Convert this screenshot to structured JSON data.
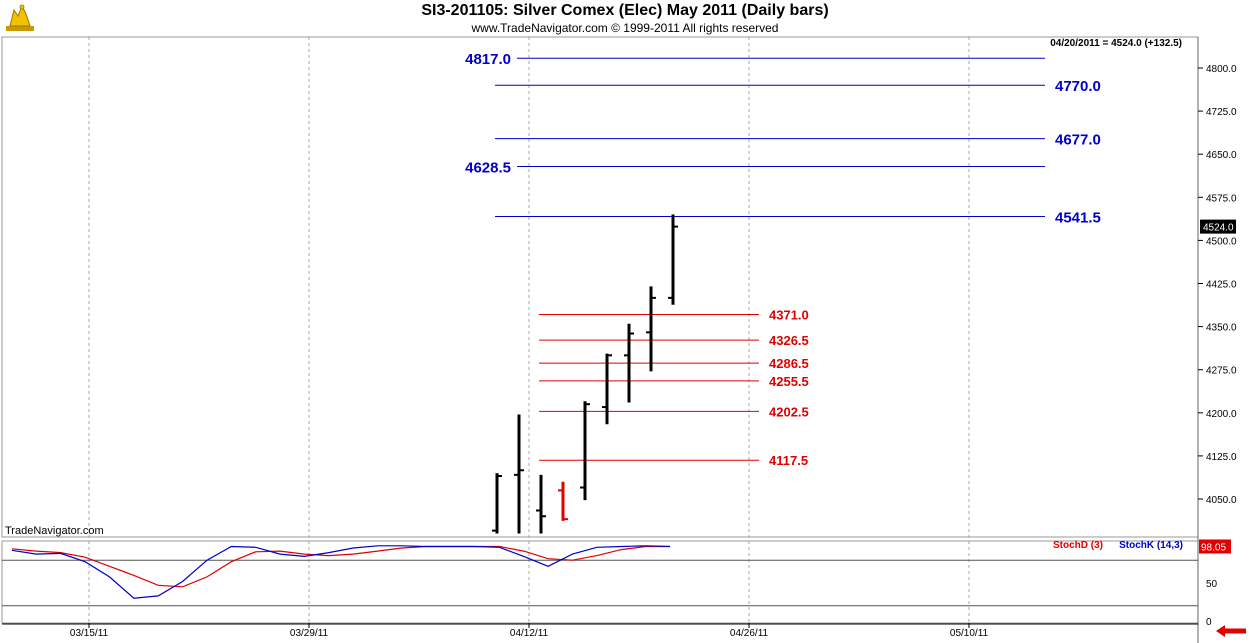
{
  "header": {
    "title": "SI3-201105:  Silver Comex (Elec) May 2011  (Daily bars)",
    "copyright": "www.TradeNavigator.com © 1999-2011 All rights reserved",
    "quote": "04/20/2011 = 4524.0 (+132.5)",
    "watermark": "TradeNavigator.com"
  },
  "colors": {
    "bars": "#000000",
    "down_bar": "#e00000",
    "resistance": "#0000c8",
    "support": "#e00000",
    "stoch_d": "#e00000",
    "stoch_k": "#0000c8",
    "grid": "#aaaaaa"
  },
  "chart_data": [
    {
      "type": "bar",
      "subtype": "ohlc",
      "title": "",
      "x_tick_labels": [
        "03/15/11",
        "03/29/11",
        "04/12/11",
        "04/26/11",
        "05/10/11"
      ],
      "ylim": [
        4000,
        4830
      ],
      "y_ticks": [
        4050.0,
        4125.0,
        4200.0,
        4275.0,
        4350.0,
        4425.0,
        4500.0,
        4575.0,
        4650.0,
        4725.0,
        4800.0
      ],
      "last_price_label": "4524.0",
      "bars": [
        {
          "i": 0,
          "open": 3995,
          "high": 4095,
          "low": 3990,
          "close": 4090,
          "color": "black"
        },
        {
          "i": 1,
          "open": 4092,
          "high": 4197,
          "low": 3990,
          "close": 4100,
          "color": "black"
        },
        {
          "i": 2,
          "open": 4030,
          "high": 4092,
          "low": 3990,
          "close": 4020,
          "color": "black"
        },
        {
          "i": 3,
          "open": 4065,
          "high": 4080,
          "low": 4012,
          "close": 4015,
          "color": "red"
        },
        {
          "i": 4,
          "open": 4070,
          "high": 4220,
          "low": 4048,
          "close": 4215,
          "color": "black"
        },
        {
          "i": 5,
          "open": 4210,
          "high": 4303,
          "low": 4180,
          "close": 4300,
          "color": "black"
        },
        {
          "i": 6,
          "open": 4300,
          "high": 4355,
          "low": 4218,
          "close": 4338,
          "color": "black"
        },
        {
          "i": 7,
          "open": 4340,
          "high": 4420,
          "low": 4272,
          "close": 4400,
          "color": "black"
        },
        {
          "i": 8,
          "open": 4400,
          "high": 4545,
          "low": 4388,
          "close": 4524,
          "color": "black"
        }
      ],
      "resistance_levels": [
        {
          "value": 4817.0,
          "label": "4817.0",
          "label_side": "left"
        },
        {
          "value": 4770.0,
          "label": "4770.0",
          "label_side": "right"
        },
        {
          "value": 4677.0,
          "label": "4677.0",
          "label_side": "right"
        },
        {
          "value": 4628.5,
          "label": "4628.5",
          "label_side": "left"
        },
        {
          "value": 4541.5,
          "label": "4541.5",
          "label_side": "right"
        }
      ],
      "support_levels": [
        {
          "value": 4371.0,
          "label": "4371.0"
        },
        {
          "value": 4326.5,
          "label": "4326.5"
        },
        {
          "value": 4286.5,
          "label": "4286.5"
        },
        {
          "value": 4255.5,
          "label": "4255.5"
        },
        {
          "value": 4202.5,
          "label": "4202.5"
        },
        {
          "value": 4117.5,
          "label": "4117.5"
        }
      ]
    },
    {
      "type": "line",
      "title": "",
      "ylim": [
        0,
        100
      ],
      "y_ticks": [
        0,
        50
      ],
      "last_value_label": "98.05",
      "legend": [
        "StochD (3)",
        "StochK (14,3)"
      ],
      "series": [
        {
          "name": "StochD (3)",
          "values": [
            95,
            92,
            90,
            84,
            72,
            60,
            47,
            45,
            58,
            78,
            91,
            92,
            88,
            86,
            88,
            92,
            96,
            98,
            98,
            98,
            98,
            92,
            82,
            80,
            86,
            94,
            98,
            98
          ]
        },
        {
          "name": "StochK (14,3)",
          "values": [
            93,
            88,
            89,
            78,
            58,
            30,
            33,
            52,
            80,
            98,
            97,
            88,
            85,
            90,
            96,
            99,
            99,
            98,
            98,
            98,
            97,
            85,
            72,
            88,
            97,
            98,
            99,
            98
          ]
        }
      ]
    }
  ]
}
